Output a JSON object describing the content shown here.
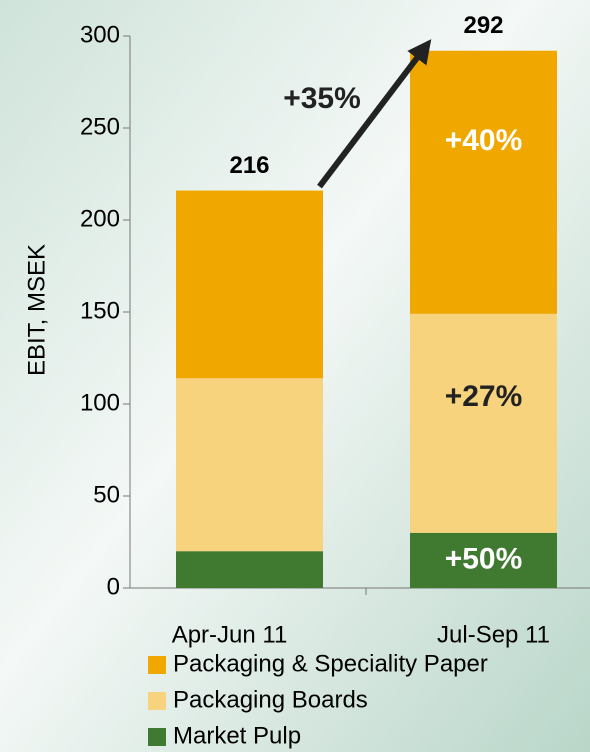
{
  "chart_data": {
    "type": "stacked_bar",
    "y_label": "EBIT, MSEK",
    "categories": [
      "Apr-Jun 11",
      "Jul-Sep 11"
    ],
    "series": [
      {
        "name": "Market Pulp",
        "color": "#3f7a30",
        "values": [
          20,
          30
        ]
      },
      {
        "name": "Packaging Boards",
        "color": "#f7d37e",
        "values": [
          94,
          119
        ]
      },
      {
        "name": "Packaging & Speciality Paper",
        "color": "#f0a800",
        "values": [
          102,
          143
        ]
      }
    ],
    "totals": [
      216,
      292
    ],
    "annotations": [
      "+35%",
      "+40%",
      "+27%",
      "+50%"
    ],
    "ylim": [
      0,
      300
    ],
    "yticks": [
      0,
      50,
      100,
      150,
      200,
      250,
      300
    ],
    "grid": false
  }
}
